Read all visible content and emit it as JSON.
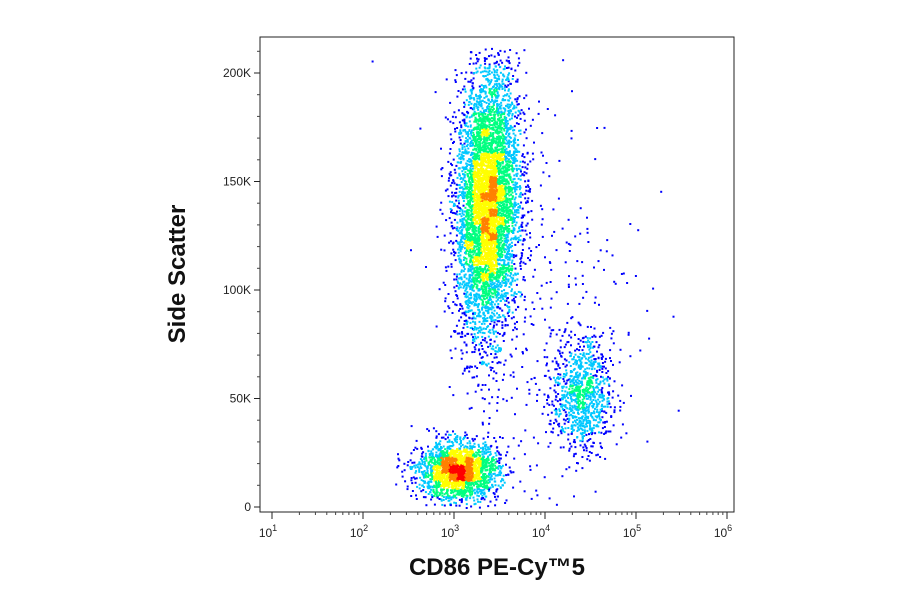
{
  "chart_data": {
    "type": "scatter",
    "style": "density dot plot (flow cytometry)",
    "xlabel": "CD86 PE-Cy™5",
    "ylabel": "Side Scatter",
    "x_scale": "log",
    "xlim": [
      10,
      1000000
    ],
    "ylim": [
      0,
      215000
    ],
    "x_ticks": [
      {
        "value": 10,
        "base": "10",
        "exp": "1"
      },
      {
        "value": 100,
        "base": "10",
        "exp": "2"
      },
      {
        "value": 1000,
        "base": "10",
        "exp": "3"
      },
      {
        "value": 10000,
        "base": "10",
        "exp": "4"
      },
      {
        "value": 100000,
        "base": "10",
        "exp": "5"
      },
      {
        "value": 1000000,
        "base": "10",
        "exp": "6"
      }
    ],
    "y_ticks": [
      {
        "value": 0,
        "label": "0"
      },
      {
        "value": 50000,
        "label": "50K"
      },
      {
        "value": 100000,
        "label": "100K"
      },
      {
        "value": 150000,
        "label": "150K"
      },
      {
        "value": 200000,
        "label": "200K"
      }
    ],
    "grid": false,
    "legend": "none",
    "color_scale": [
      "#0000ff",
      "#00c8ff",
      "#00ff80",
      "#ffff00",
      "#ff8000",
      "#ff0000"
    ],
    "populations": [
      {
        "x_center": 2300,
        "y_center": 140000,
        "x_spread_log10": 0.17,
        "y_spread": 30000,
        "fraction": 0.62
      },
      {
        "x_center": 1100,
        "y_center": 17000,
        "x_spread_log10": 0.22,
        "y_spread": 6500,
        "fraction": 0.24
      },
      {
        "x_center": 25000,
        "y_center": 52000,
        "x_spread_log10": 0.16,
        "y_spread": 13000,
        "fraction": 0.1
      },
      {
        "x_center": 9000,
        "y_center": 90000,
        "x_spread_log10": 0.55,
        "y_spread": 55000,
        "fraction": 0.04
      }
    ]
  }
}
